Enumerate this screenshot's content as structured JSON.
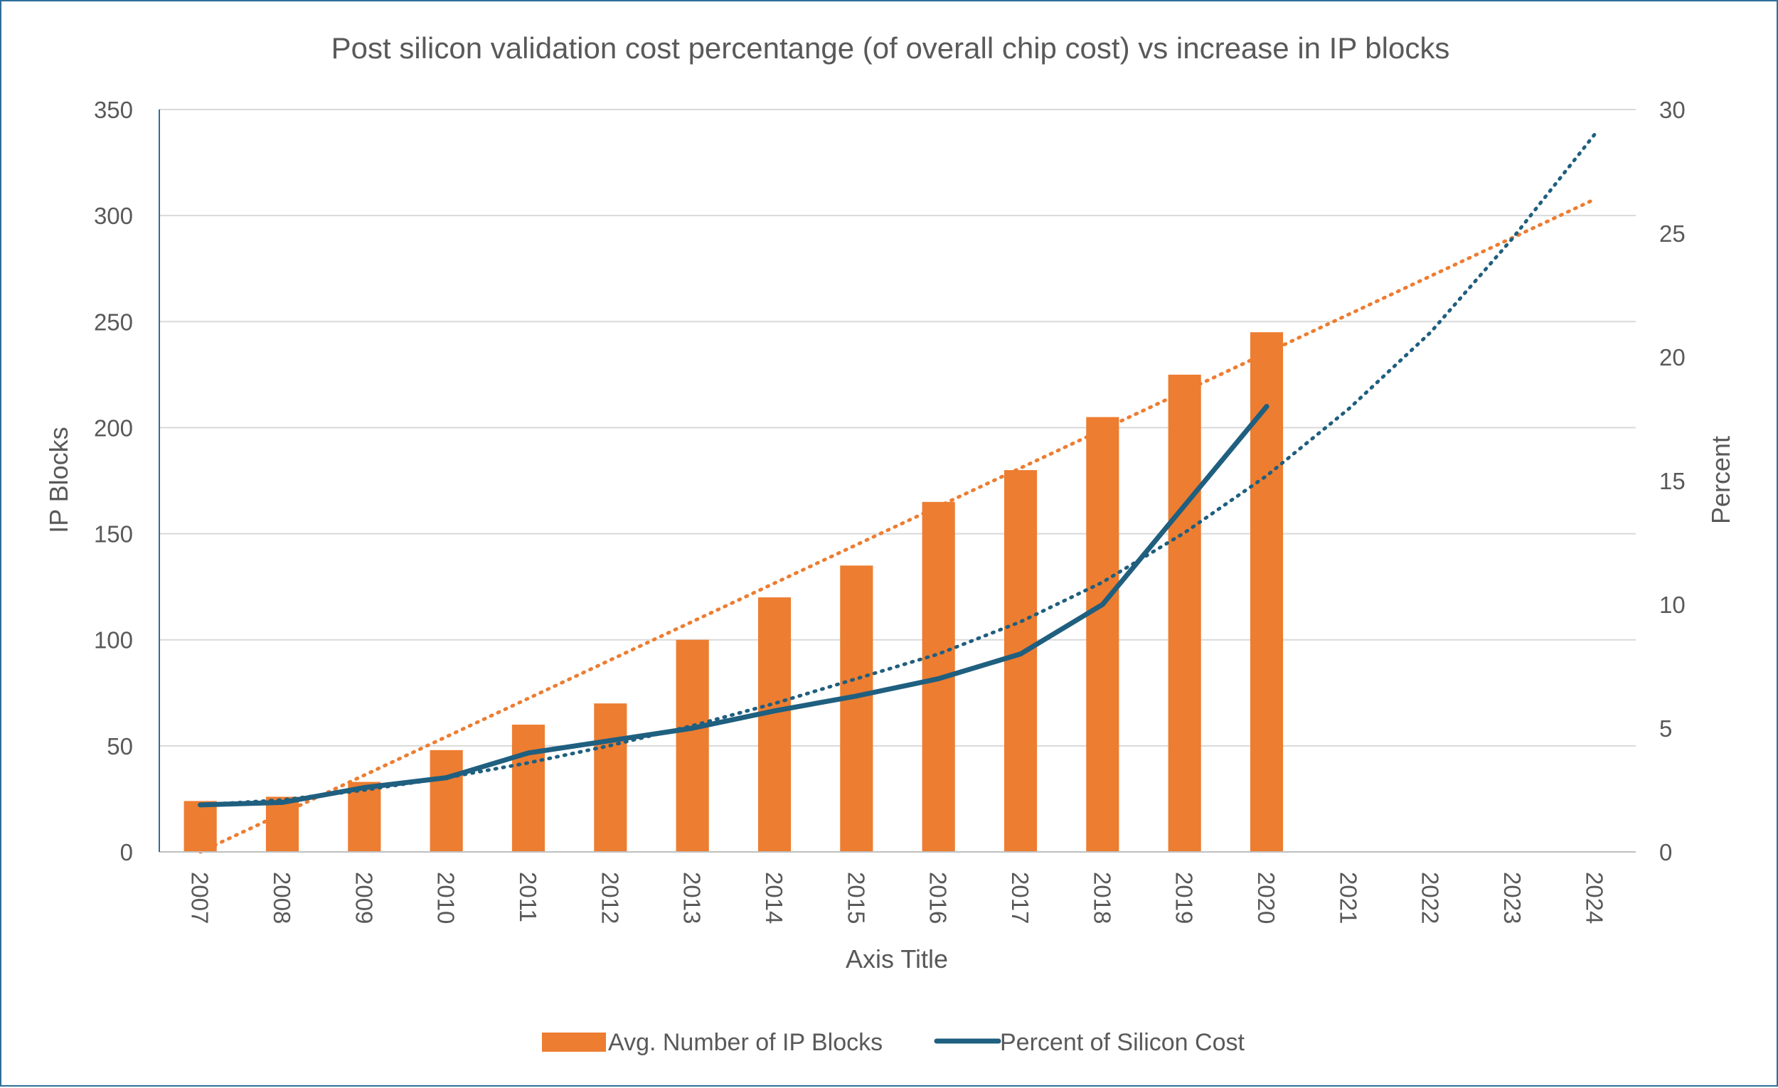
{
  "chart_data": {
    "type": "bar",
    "title": "Post silicon validation cost percentange (of overall chip cost) vs increase in IP blocks",
    "xlabel": "Axis Title",
    "ylabel": "IP Blocks",
    "y2label": "Percent",
    "categories": [
      "2007",
      "2008",
      "2009",
      "2010",
      "2011",
      "2012",
      "2013",
      "2014",
      "2015",
      "2016",
      "2017",
      "2018",
      "2019",
      "2020",
      "2021",
      "2022",
      "2023",
      "2024"
    ],
    "ylim": [
      0,
      350
    ],
    "y2lim": [
      0,
      30
    ],
    "yticks": [
      "0",
      "50",
      "100",
      "150",
      "200",
      "250",
      "300",
      "350"
    ],
    "y2ticks": [
      "0",
      "5",
      "10",
      "15",
      "20",
      "25",
      "30"
    ],
    "grid": true,
    "legend_position": "bottom",
    "series": [
      {
        "name": "Avg. Number of IP Blocks",
        "type": "bar",
        "axis": "left",
        "color": "#ed7d31",
        "values": [
          24,
          26,
          33,
          48,
          60,
          70,
          100,
          120,
          135,
          165,
          180,
          205,
          225,
          245,
          null,
          null,
          null,
          null
        ]
      },
      {
        "name": "Percent of Silicon Cost",
        "type": "line",
        "axis": "right",
        "color": "#1f5f7f",
        "values": [
          1.9,
          2.0,
          2.6,
          3.0,
          4.0,
          4.5,
          5.0,
          5.7,
          6.3,
          7.0,
          8.0,
          10.0,
          14.0,
          18.0,
          null,
          null,
          null,
          null
        ]
      }
    ],
    "trendlines": [
      {
        "series": "Avg. Number of IP Blocks",
        "style": "dotted",
        "color": "#ed7d31",
        "axis": "left",
        "values": [
          0,
          18.1,
          36.2,
          54.3,
          72.4,
          90.5,
          108.6,
          126.7,
          144.8,
          162.9,
          181.0,
          199.1,
          217.2,
          235.3,
          253.4,
          271.5,
          289.6,
          307.7
        ]
      },
      {
        "series": "Percent of Silicon Cost",
        "style": "dotted",
        "color": "#1f5f7f",
        "axis": "right",
        "values": [
          1.9,
          2.1,
          2.5,
          3.0,
          3.6,
          4.3,
          5.1,
          6.0,
          7.0,
          8.0,
          9.3,
          10.9,
          12.9,
          15.2,
          17.9,
          21.0,
          24.8,
          29.0
        ]
      }
    ]
  }
}
